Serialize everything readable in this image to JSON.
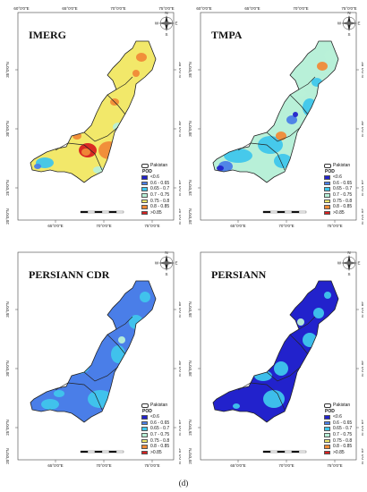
{
  "caption": "(d)",
  "lat_ticks": [
    "35°0'0\"N",
    "30°0'0\"N",
    "25°0'0\"N",
    "20°0'0\"N"
  ],
  "lon_ticks": [
    "65°0'0\"E",
    "70°0'0\"E",
    "75°0'0\"E"
  ],
  "top_lon_ticks": [
    "60°0'0\"E",
    "65°0'0\"E",
    "70°0'0\"E",
    "75°0'0\"E"
  ],
  "compass": {
    "n": "N",
    "s": "S",
    "e": "E",
    "w": "W"
  },
  "legend": {
    "title": "Pakistan",
    "subtitle": "POD",
    "classes": [
      {
        "label": "<0.6",
        "color": "#2222cc"
      },
      {
        "label": "0.6 - 0.65",
        "color": "#4a7ee8"
      },
      {
        "label": "0.65 - 0.7",
        "color": "#3fc6ec"
      },
      {
        "label": "0.7 - 0.75",
        "color": "#b8f0d8"
      },
      {
        "label": "0.75 - 0.8",
        "color": "#f2e86a"
      },
      {
        "label": "0.8 - 0.85",
        "color": "#f08a38"
      },
      {
        "label": ">0.85",
        "color": "#d82020"
      }
    ]
  },
  "panels": [
    {
      "title": "IMERG",
      "base_color": "#f2e86a"
    },
    {
      "title": "TMPA",
      "base_color": "#b8f0d8"
    },
    {
      "title": "PERSIANN CDR",
      "base_color": "#4a7ee8"
    },
    {
      "title": "PERSIANN",
      "base_color": "#2222cc"
    }
  ]
}
